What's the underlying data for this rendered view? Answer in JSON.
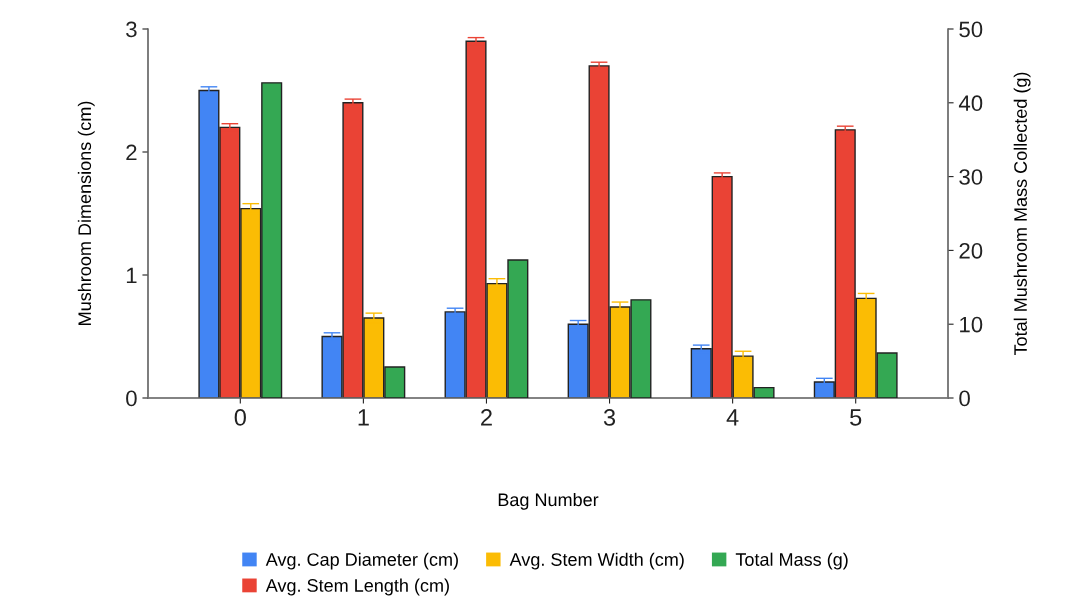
{
  "chart_data": {
    "type": "bar",
    "xlabel": "Bag Number",
    "ylabel": "Mushroom Dimensions (cm)",
    "y2label": "Total Mushroom Mass Collected (g)",
    "categories": [
      "0",
      "1",
      "2",
      "3",
      "4",
      "5"
    ],
    "series": [
      {
        "name": "Avg. Cap Diameter (cm)",
        "color": "#4285f4",
        "values": [
          2.5,
          0.5,
          0.7,
          0.6,
          0.4,
          0.13
        ],
        "errors": [
          0.03,
          0.03,
          0.03,
          0.03,
          0.03,
          0.03
        ]
      },
      {
        "name": "Avg. Stem Length (cm)",
        "color": "#ea4335",
        "values": [
          2.2,
          2.4,
          2.9,
          2.7,
          1.8,
          2.18
        ],
        "errors": [
          0.03,
          0.03,
          0.03,
          0.03,
          0.03,
          0.03
        ]
      },
      {
        "name": "Avg. Stem Width (cm)",
        "color": "#fbbc04",
        "values": [
          1.54,
          0.65,
          0.93,
          0.74,
          0.34,
          0.81
        ],
        "errors": [
          0.04,
          0.04,
          0.04,
          0.04,
          0.04,
          0.04
        ]
      },
      {
        "name": "Total Mass (g)",
        "color": "#34a853",
        "axis": "y2",
        "values": [
          42.7,
          4.2,
          18.7,
          13.3,
          1.4,
          6.1
        ]
      }
    ],
    "ylim": [
      0,
      3
    ],
    "yticks": [
      0,
      1,
      2,
      3
    ],
    "y2lim": [
      0,
      50
    ],
    "y2ticks": [
      0,
      10,
      20,
      30,
      40,
      50
    ],
    "grid": false,
    "legend": "bottom"
  }
}
